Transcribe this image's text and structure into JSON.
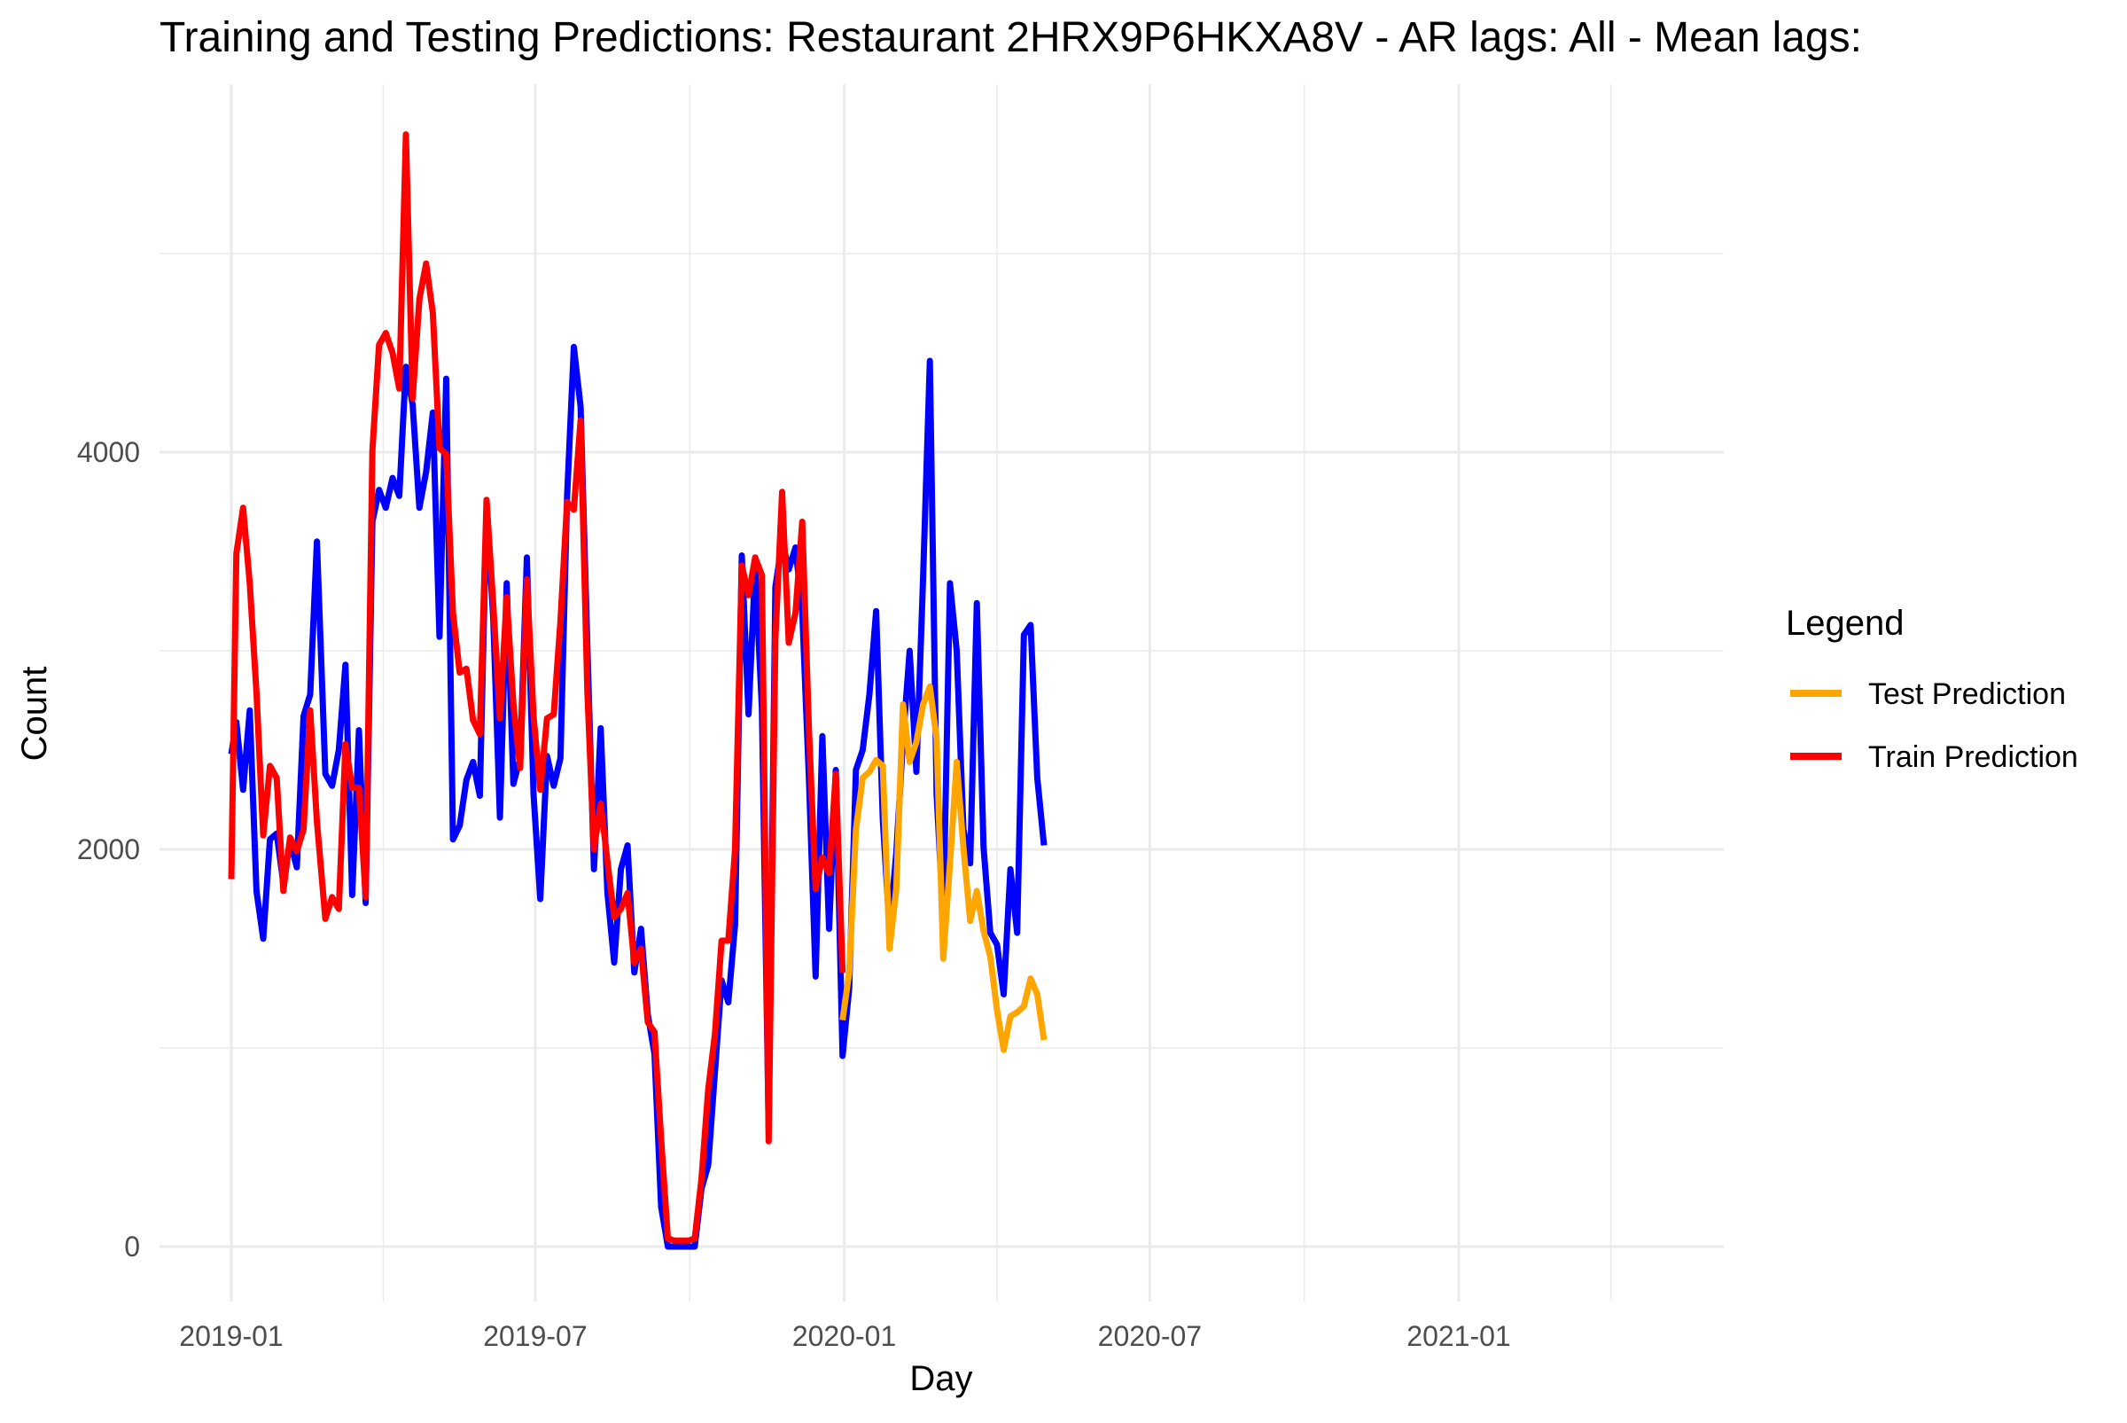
{
  "chart_data": {
    "type": "line",
    "title": "Training and Testing Predictions: Restaurant 2HRX9P6HKXA8V - AR lags: All - Mean lags:",
    "xlabel": "Day",
    "ylabel": "Count",
    "x_ticks": [
      "2019-01",
      "2019-07",
      "2020-01",
      "2020-07",
      "2021-01"
    ],
    "y_ticks": [
      0,
      2000,
      4000
    ],
    "ylim": [
      -300,
      5850
    ],
    "grid": true,
    "legend": {
      "title": "Legend",
      "position": "right",
      "entries": [
        {
          "label": "Test Prediction",
          "color": "#FFA500"
        },
        {
          "label": "Train Prediction",
          "color": "#FF0000"
        }
      ]
    },
    "colors": {
      "actual": "#0000FF",
      "train": "#FF0000",
      "test": "#FFA500"
    },
    "series": [
      {
        "key": "actual",
        "color": "#0000FF",
        "points": [
          [
            "2019-01-01",
            2480
          ],
          [
            "2019-01-04",
            2640
          ],
          [
            "2019-01-08",
            2300
          ],
          [
            "2019-01-12",
            2700
          ],
          [
            "2019-01-16",
            1790
          ],
          [
            "2019-01-20",
            1550
          ],
          [
            "2019-01-24",
            2050
          ],
          [
            "2019-01-28",
            2080
          ],
          [
            "2019-02-01",
            1830
          ],
          [
            "2019-02-05",
            2040
          ],
          [
            "2019-02-09",
            1910
          ],
          [
            "2019-02-13",
            2670
          ],
          [
            "2019-02-17",
            2780
          ],
          [
            "2019-02-21",
            3550
          ],
          [
            "2019-02-26",
            2380
          ],
          [
            "2019-03-02",
            2320
          ],
          [
            "2019-03-06",
            2500
          ],
          [
            "2019-03-10",
            2930
          ],
          [
            "2019-03-14",
            1770
          ],
          [
            "2019-03-18",
            2600
          ],
          [
            "2019-03-22",
            1730
          ],
          [
            "2019-03-26",
            3650
          ],
          [
            "2019-03-30",
            3810
          ],
          [
            "2019-04-03",
            3720
          ],
          [
            "2019-04-07",
            3870
          ],
          [
            "2019-04-11",
            3780
          ],
          [
            "2019-04-15",
            4430
          ],
          [
            "2019-04-19",
            4240
          ],
          [
            "2019-04-23",
            3720
          ],
          [
            "2019-04-27",
            3900
          ],
          [
            "2019-05-01",
            4200
          ],
          [
            "2019-05-05",
            3070
          ],
          [
            "2019-05-09",
            4370
          ],
          [
            "2019-05-13",
            2050
          ],
          [
            "2019-05-17",
            2120
          ],
          [
            "2019-05-21",
            2350
          ],
          [
            "2019-05-25",
            2440
          ],
          [
            "2019-05-29",
            2270
          ],
          [
            "2019-06-02",
            3730
          ],
          [
            "2019-06-06",
            3160
          ],
          [
            "2019-06-10",
            2160
          ],
          [
            "2019-06-14",
            3340
          ],
          [
            "2019-06-18",
            2330
          ],
          [
            "2019-06-22",
            2460
          ],
          [
            "2019-06-26",
            3470
          ],
          [
            "2019-06-30",
            2280
          ],
          [
            "2019-07-04",
            1750
          ],
          [
            "2019-07-08",
            2470
          ],
          [
            "2019-07-12",
            2320
          ],
          [
            "2019-07-16",
            2460
          ],
          [
            "2019-07-20",
            3780
          ],
          [
            "2019-07-24",
            4530
          ],
          [
            "2019-07-28",
            4230
          ],
          [
            "2019-08-01",
            3030
          ],
          [
            "2019-08-05",
            1900
          ],
          [
            "2019-08-09",
            2610
          ],
          [
            "2019-08-13",
            1780
          ],
          [
            "2019-08-17",
            1430
          ],
          [
            "2019-08-21",
            1900
          ],
          [
            "2019-08-25",
            2020
          ],
          [
            "2019-08-29",
            1380
          ],
          [
            "2019-09-02",
            1600
          ],
          [
            "2019-09-06",
            1170
          ],
          [
            "2019-09-10",
            970
          ],
          [
            "2019-09-14",
            200
          ],
          [
            "2019-09-18",
            0
          ],
          [
            "2019-09-22",
            0
          ],
          [
            "2019-09-26",
            0
          ],
          [
            "2019-09-30",
            0
          ],
          [
            "2019-10-04",
            0
          ],
          [
            "2019-10-08",
            290
          ],
          [
            "2019-10-12",
            410
          ],
          [
            "2019-10-16",
            880
          ],
          [
            "2019-10-20",
            1340
          ],
          [
            "2019-10-24",
            1230
          ],
          [
            "2019-10-28",
            1620
          ],
          [
            "2019-11-01",
            3480
          ],
          [
            "2019-11-05",
            2680
          ],
          [
            "2019-11-09",
            3420
          ],
          [
            "2019-11-13",
            2710
          ],
          [
            "2019-11-17",
            600
          ],
          [
            "2019-11-21",
            3320
          ],
          [
            "2019-11-25",
            3550
          ],
          [
            "2019-11-29",
            3410
          ],
          [
            "2019-12-03",
            3520
          ],
          [
            "2019-12-07",
            3200
          ],
          [
            "2019-12-11",
            2350
          ],
          [
            "2019-12-15",
            1360
          ],
          [
            "2019-12-19",
            2570
          ],
          [
            "2019-12-23",
            1600
          ],
          [
            "2019-12-27",
            2400
          ],
          [
            "2019-12-31",
            960
          ],
          [
            "2020-01-04",
            1300
          ],
          [
            "2020-01-08",
            2400
          ],
          [
            "2020-01-12",
            2500
          ],
          [
            "2020-01-16",
            2780
          ],
          [
            "2020-01-20",
            3200
          ],
          [
            "2020-01-24",
            2150
          ],
          [
            "2020-01-28",
            1600
          ],
          [
            "2020-02-01",
            1980
          ],
          [
            "2020-02-05",
            2550
          ],
          [
            "2020-02-09",
            3000
          ],
          [
            "2020-02-13",
            2390
          ],
          [
            "2020-02-17",
            3370
          ],
          [
            "2020-02-21",
            4460
          ],
          [
            "2020-02-25",
            2280
          ],
          [
            "2020-02-29",
            1650
          ],
          [
            "2020-03-04",
            3340
          ],
          [
            "2020-03-08",
            3000
          ],
          [
            "2020-03-12",
            2100
          ],
          [
            "2020-03-16",
            1930
          ],
          [
            "2020-03-20",
            3240
          ],
          [
            "2020-03-24",
            2010
          ],
          [
            "2020-03-28",
            1580
          ],
          [
            "2020-04-01",
            1520
          ],
          [
            "2020-04-05",
            1270
          ],
          [
            "2020-04-09",
            1900
          ],
          [
            "2020-04-13",
            1580
          ],
          [
            "2020-04-17",
            3080
          ],
          [
            "2020-04-21",
            3130
          ],
          [
            "2020-04-25",
            2360
          ],
          [
            "2020-04-29",
            2020
          ]
        ]
      },
      {
        "key": "train",
        "name": "Train Prediction",
        "color": "#FF0000",
        "points": [
          [
            "2019-01-01",
            1850
          ],
          [
            "2019-01-04",
            3490
          ],
          [
            "2019-01-08",
            3720
          ],
          [
            "2019-01-12",
            3340
          ],
          [
            "2019-01-16",
            2790
          ],
          [
            "2019-01-20",
            2070
          ],
          [
            "2019-01-24",
            2420
          ],
          [
            "2019-01-28",
            2360
          ],
          [
            "2019-02-01",
            1790
          ],
          [
            "2019-02-05",
            2060
          ],
          [
            "2019-02-09",
            1990
          ],
          [
            "2019-02-13",
            2100
          ],
          [
            "2019-02-17",
            2700
          ],
          [
            "2019-02-21",
            2140
          ],
          [
            "2019-02-26",
            1650
          ],
          [
            "2019-03-02",
            1760
          ],
          [
            "2019-03-06",
            1700
          ],
          [
            "2019-03-10",
            2530
          ],
          [
            "2019-03-14",
            2310
          ],
          [
            "2019-03-18",
            2310
          ],
          [
            "2019-03-22",
            1760
          ],
          [
            "2019-03-26",
            4010
          ],
          [
            "2019-03-30",
            4540
          ],
          [
            "2019-04-03",
            4600
          ],
          [
            "2019-04-07",
            4500
          ],
          [
            "2019-04-11",
            4320
          ],
          [
            "2019-04-15",
            5600
          ],
          [
            "2019-04-19",
            4270
          ],
          [
            "2019-04-23",
            4770
          ],
          [
            "2019-04-27",
            4950
          ],
          [
            "2019-05-01",
            4700
          ],
          [
            "2019-05-05",
            4020
          ],
          [
            "2019-05-09",
            3990
          ],
          [
            "2019-05-13",
            3190
          ],
          [
            "2019-05-17",
            2890
          ],
          [
            "2019-05-21",
            2910
          ],
          [
            "2019-05-25",
            2650
          ],
          [
            "2019-05-29",
            2580
          ],
          [
            "2019-06-02",
            3760
          ],
          [
            "2019-06-06",
            3230
          ],
          [
            "2019-06-10",
            2660
          ],
          [
            "2019-06-14",
            3270
          ],
          [
            "2019-06-18",
            2730
          ],
          [
            "2019-06-22",
            2410
          ],
          [
            "2019-06-26",
            3360
          ],
          [
            "2019-06-30",
            2670
          ],
          [
            "2019-07-04",
            2300
          ],
          [
            "2019-07-08",
            2660
          ],
          [
            "2019-07-12",
            2680
          ],
          [
            "2019-07-16",
            3150
          ],
          [
            "2019-07-20",
            3750
          ],
          [
            "2019-07-24",
            3710
          ],
          [
            "2019-07-28",
            4160
          ],
          [
            "2019-08-01",
            2800
          ],
          [
            "2019-08-05",
            2000
          ],
          [
            "2019-08-09",
            2230
          ],
          [
            "2019-08-13",
            1940
          ],
          [
            "2019-08-17",
            1660
          ],
          [
            "2019-08-21",
            1700
          ],
          [
            "2019-08-25",
            1780
          ],
          [
            "2019-08-29",
            1430
          ],
          [
            "2019-09-02",
            1500
          ],
          [
            "2019-09-06",
            1130
          ],
          [
            "2019-09-10",
            1080
          ],
          [
            "2019-09-14",
            540
          ],
          [
            "2019-09-18",
            40
          ],
          [
            "2019-09-22",
            30
          ],
          [
            "2019-09-26",
            30
          ],
          [
            "2019-09-30",
            30
          ],
          [
            "2019-10-04",
            40
          ],
          [
            "2019-10-08",
            340
          ],
          [
            "2019-10-12",
            790
          ],
          [
            "2019-10-16",
            1070
          ],
          [
            "2019-10-20",
            1540
          ],
          [
            "2019-10-24",
            1540
          ],
          [
            "2019-10-28",
            2000
          ],
          [
            "2019-11-01",
            3430
          ],
          [
            "2019-11-05",
            3280
          ],
          [
            "2019-11-09",
            3470
          ],
          [
            "2019-11-13",
            3380
          ],
          [
            "2019-11-17",
            530
          ],
          [
            "2019-11-21",
            3060
          ],
          [
            "2019-11-25",
            3800
          ],
          [
            "2019-11-29",
            3040
          ],
          [
            "2019-12-03",
            3190
          ],
          [
            "2019-12-07",
            3650
          ],
          [
            "2019-12-11",
            2600
          ],
          [
            "2019-12-15",
            1800
          ],
          [
            "2019-12-19",
            1960
          ],
          [
            "2019-12-23",
            1880
          ],
          [
            "2019-12-27",
            2380
          ],
          [
            "2019-12-31",
            1380
          ]
        ]
      },
      {
        "key": "test",
        "name": "Test Prediction",
        "color": "#FFA500",
        "points": [
          [
            "2019-12-31",
            1140
          ],
          [
            "2020-01-04",
            1380
          ],
          [
            "2020-01-08",
            2100
          ],
          [
            "2020-01-12",
            2360
          ],
          [
            "2020-01-16",
            2390
          ],
          [
            "2020-01-20",
            2450
          ],
          [
            "2020-01-24",
            2420
          ],
          [
            "2020-01-28",
            1500
          ],
          [
            "2020-02-01",
            1800
          ],
          [
            "2020-02-05",
            2730
          ],
          [
            "2020-02-09",
            2440
          ],
          [
            "2020-02-13",
            2540
          ],
          [
            "2020-02-17",
            2730
          ],
          [
            "2020-02-21",
            2820
          ],
          [
            "2020-02-25",
            2560
          ],
          [
            "2020-02-29",
            1450
          ],
          [
            "2020-03-04",
            1930
          ],
          [
            "2020-03-08",
            2440
          ],
          [
            "2020-03-12",
            2010
          ],
          [
            "2020-03-16",
            1640
          ],
          [
            "2020-03-20",
            1790
          ],
          [
            "2020-03-24",
            1590
          ],
          [
            "2020-03-28",
            1460
          ],
          [
            "2020-04-01",
            1190
          ],
          [
            "2020-04-05",
            990
          ],
          [
            "2020-04-09",
            1160
          ],
          [
            "2020-04-13",
            1180
          ],
          [
            "2020-04-17",
            1210
          ],
          [
            "2020-04-21",
            1350
          ],
          [
            "2020-04-25",
            1270
          ],
          [
            "2020-04-29",
            1040
          ]
        ]
      }
    ]
  }
}
